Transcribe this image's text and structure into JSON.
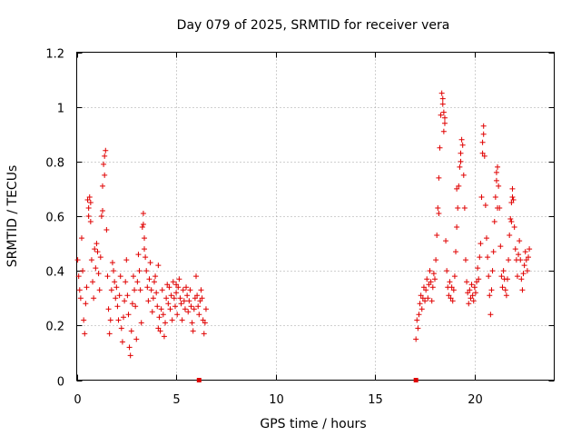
{
  "chart_data": {
    "type": "scatter",
    "title": "Day 079 of 2025, SRMTID for receiver vera",
    "xlabel": "GPS time / hours",
    "ylabel": "SRMTID / TECUs",
    "xlim": [
      0,
      24
    ],
    "ylim": [
      0,
      1.2
    ],
    "x_ticks": [
      0,
      5,
      10,
      15,
      20
    ],
    "x_tick_labels": [
      "0",
      "5",
      "10",
      "15",
      "20"
    ],
    "y_ticks": [
      0,
      0.2,
      0.4,
      0.6,
      0.8,
      1.0,
      1.2
    ],
    "y_tick_labels": [
      "0",
      "0.2",
      "0.4",
      "0.6",
      "0.8",
      "1",
      "1.2"
    ],
    "grid": true,
    "marker": "plus",
    "color": "#e00000",
    "series": [
      {
        "name": "SRMTID",
        "points": [
          [
            0.05,
            0.44
          ],
          [
            0.1,
            0.38
          ],
          [
            0.15,
            0.33
          ],
          [
            0.2,
            0.3
          ],
          [
            0.25,
            0.52
          ],
          [
            0.3,
            0.4
          ],
          [
            0.35,
            0.22
          ],
          [
            0.4,
            0.17
          ],
          [
            0.45,
            0.28
          ],
          [
            0.5,
            0.34
          ],
          [
            0.55,
            0.66
          ],
          [
            0.6,
            0.63
          ],
          [
            0.65,
            0.67
          ],
          [
            0.7,
            0.58
          ],
          [
            0.75,
            0.44
          ],
          [
            0.8,
            0.36
          ],
          [
            0.85,
            0.3
          ],
          [
            0.9,
            0.48
          ],
          [
            0.95,
            0.41
          ],
          [
            1.0,
            0.5
          ],
          [
            1.05,
            0.47
          ],
          [
            1.1,
            0.39
          ],
          [
            1.15,
            0.33
          ],
          [
            1.2,
            0.45
          ],
          [
            1.25,
            0.6
          ],
          [
            1.3,
            0.71
          ],
          [
            1.35,
            0.79
          ],
          [
            1.4,
            0.82
          ],
          [
            1.45,
            0.84
          ],
          [
            1.5,
            0.55
          ],
          [
            1.55,
            0.38
          ],
          [
            1.6,
            0.26
          ],
          [
            1.65,
            0.17
          ],
          [
            1.7,
            0.22
          ],
          [
            1.75,
            0.33
          ],
          [
            1.8,
            0.43
          ],
          [
            1.85,
            0.4
          ],
          [
            1.9,
            0.36
          ],
          [
            1.95,
            0.3
          ],
          [
            2.0,
            0.34
          ],
          [
            2.05,
            0.27
          ],
          [
            2.1,
            0.22
          ],
          [
            2.15,
            0.31
          ],
          [
            2.2,
            0.38
          ],
          [
            2.25,
            0.19
          ],
          [
            2.3,
            0.14
          ],
          [
            2.35,
            0.23
          ],
          [
            2.4,
            0.29
          ],
          [
            2.45,
            0.36
          ],
          [
            2.5,
            0.44
          ],
          [
            2.55,
            0.31
          ],
          [
            2.6,
            0.24
          ],
          [
            2.65,
            0.12
          ],
          [
            2.7,
            0.09
          ],
          [
            2.75,
            0.18
          ],
          [
            2.8,
            0.28
          ],
          [
            2.85,
            0.38
          ],
          [
            2.9,
            0.33
          ],
          [
            2.95,
            0.27
          ],
          [
            3.0,
            0.15
          ],
          [
            3.05,
            0.36
          ],
          [
            3.1,
            0.46
          ],
          [
            3.15,
            0.4
          ],
          [
            3.2,
            0.33
          ],
          [
            3.25,
            0.21
          ],
          [
            3.3,
            0.56
          ],
          [
            3.35,
            0.61
          ],
          [
            3.4,
            0.52
          ],
          [
            3.45,
            0.45
          ],
          [
            3.5,
            0.4
          ],
          [
            3.55,
            0.34
          ],
          [
            3.6,
            0.29
          ],
          [
            3.65,
            0.37
          ],
          [
            3.7,
            0.43
          ],
          [
            3.75,
            0.33
          ],
          [
            3.8,
            0.25
          ],
          [
            3.85,
            0.3
          ],
          [
            3.9,
            0.36
          ],
          [
            3.95,
            0.38
          ],
          [
            4.0,
            0.32
          ],
          [
            4.05,
            0.27
          ],
          [
            4.1,
            0.19
          ],
          [
            4.15,
            0.23
          ],
          [
            4.2,
            0.18
          ],
          [
            4.25,
            0.26
          ],
          [
            4.3,
            0.33
          ],
          [
            4.35,
            0.24
          ],
          [
            4.4,
            0.16
          ],
          [
            4.45,
            0.21
          ],
          [
            4.5,
            0.3
          ],
          [
            4.55,
            0.35
          ],
          [
            4.6,
            0.28
          ],
          [
            4.65,
            0.34
          ],
          [
            4.7,
            0.26
          ],
          [
            4.75,
            0.31
          ],
          [
            4.8,
            0.22
          ],
          [
            4.85,
            0.36
          ],
          [
            4.9,
            0.3
          ],
          [
            4.95,
            0.27
          ],
          [
            5.0,
            0.32
          ],
          [
            5.05,
            0.24
          ],
          [
            5.1,
            0.34
          ],
          [
            5.15,
            0.37
          ],
          [
            5.2,
            0.3
          ],
          [
            5.25,
            0.28
          ],
          [
            5.3,
            0.22
          ],
          [
            5.35,
            0.33
          ],
          [
            5.4,
            0.29
          ],
          [
            5.45,
            0.26
          ],
          [
            5.5,
            0.34
          ],
          [
            5.55,
            0.31
          ],
          [
            5.6,
            0.25
          ],
          [
            5.65,
            0.29
          ],
          [
            5.7,
            0.33
          ],
          [
            5.75,
            0.27
          ],
          [
            5.8,
            0.21
          ],
          [
            5.85,
            0.18
          ],
          [
            5.9,
            0.26
          ],
          [
            5.95,
            0.3
          ],
          [
            6.0,
            0.38
          ],
          [
            6.05,
            0.31
          ],
          [
            6.1,
            0.27
          ],
          [
            6.15,
            0.24
          ],
          [
            6.2,
            0.29
          ],
          [
            6.25,
            0.33
          ],
          [
            6.3,
            0.3
          ],
          [
            6.35,
            0.22
          ],
          [
            6.4,
            0.17
          ],
          [
            6.45,
            0.21
          ],
          [
            6.5,
            0.26
          ],
          [
            17.05,
            0.15
          ],
          [
            17.1,
            0.22
          ],
          [
            17.15,
            0.19
          ],
          [
            17.2,
            0.24
          ],
          [
            17.25,
            0.28
          ],
          [
            17.3,
            0.31
          ],
          [
            17.35,
            0.26
          ],
          [
            17.4,
            0.3
          ],
          [
            17.45,
            0.34
          ],
          [
            17.5,
            0.29
          ],
          [
            17.55,
            0.33
          ],
          [
            17.6,
            0.37
          ],
          [
            17.65,
            0.3
          ],
          [
            17.7,
            0.35
          ],
          [
            17.75,
            0.4
          ],
          [
            17.8,
            0.36
          ],
          [
            17.85,
            0.29
          ],
          [
            17.9,
            0.34
          ],
          [
            17.95,
            0.39
          ],
          [
            18.0,
            0.37
          ],
          [
            18.05,
            0.44
          ],
          [
            18.1,
            0.53
          ],
          [
            18.15,
            0.63
          ],
          [
            18.2,
            0.74
          ],
          [
            18.25,
            0.85
          ],
          [
            18.3,
            0.97
          ],
          [
            18.35,
            1.05
          ],
          [
            18.4,
            1.01
          ],
          [
            18.45,
            0.98
          ],
          [
            18.5,
            0.94
          ],
          [
            18.55,
            0.51
          ],
          [
            18.6,
            0.4
          ],
          [
            18.65,
            0.34
          ],
          [
            18.7,
            0.31
          ],
          [
            18.75,
            0.36
          ],
          [
            18.8,
            0.3
          ],
          [
            18.85,
            0.34
          ],
          [
            18.9,
            0.29
          ],
          [
            18.95,
            0.33
          ],
          [
            19.0,
            0.38
          ],
          [
            19.05,
            0.47
          ],
          [
            19.1,
            0.56
          ],
          [
            19.15,
            0.63
          ],
          [
            19.2,
            0.71
          ],
          [
            19.25,
            0.78
          ],
          [
            19.3,
            0.83
          ],
          [
            19.35,
            0.88
          ],
          [
            19.4,
            0.86
          ],
          [
            19.45,
            0.75
          ],
          [
            19.5,
            0.63
          ],
          [
            19.55,
            0.44
          ],
          [
            19.6,
            0.36
          ],
          [
            19.65,
            0.32
          ],
          [
            19.7,
            0.28
          ],
          [
            19.75,
            0.33
          ],
          [
            19.8,
            0.3
          ],
          [
            19.85,
            0.35
          ],
          [
            19.9,
            0.31
          ],
          [
            19.95,
            0.29
          ],
          [
            20.0,
            0.34
          ],
          [
            20.05,
            0.32
          ],
          [
            20.1,
            0.36
          ],
          [
            20.15,
            0.41
          ],
          [
            20.2,
            0.37
          ],
          [
            20.25,
            0.45
          ],
          [
            20.3,
            0.5
          ],
          [
            20.35,
            0.67
          ],
          [
            20.4,
            0.83
          ],
          [
            20.45,
            0.9
          ],
          [
            20.5,
            0.82
          ],
          [
            20.55,
            0.64
          ],
          [
            20.6,
            0.52
          ],
          [
            20.65,
            0.45
          ],
          [
            20.7,
            0.38
          ],
          [
            20.75,
            0.31
          ],
          [
            20.8,
            0.24
          ],
          [
            20.85,
            0.33
          ],
          [
            20.9,
            0.4
          ],
          [
            20.95,
            0.47
          ],
          [
            21.0,
            0.58
          ],
          [
            21.05,
            0.67
          ],
          [
            21.1,
            0.73
          ],
          [
            21.15,
            0.78
          ],
          [
            21.2,
            0.71
          ],
          [
            21.25,
            0.63
          ],
          [
            21.3,
            0.49
          ],
          [
            21.35,
            0.38
          ],
          [
            21.4,
            0.34
          ],
          [
            21.45,
            0.4
          ],
          [
            21.5,
            0.37
          ],
          [
            21.55,
            0.33
          ],
          [
            21.6,
            0.31
          ],
          [
            21.65,
            0.37
          ],
          [
            21.7,
            0.44
          ],
          [
            21.75,
            0.53
          ],
          [
            21.8,
            0.59
          ],
          [
            21.85,
            0.65
          ],
          [
            21.9,
            0.7
          ],
          [
            21.95,
            0.66
          ],
          [
            22.0,
            0.56
          ],
          [
            22.05,
            0.48
          ],
          [
            22.1,
            0.44
          ],
          [
            22.15,
            0.38
          ],
          [
            22.2,
            0.46
          ],
          [
            22.25,
            0.51
          ],
          [
            22.3,
            0.44
          ],
          [
            22.35,
            0.37
          ],
          [
            22.4,
            0.33
          ],
          [
            22.45,
            0.39
          ],
          [
            22.5,
            0.42
          ],
          [
            22.55,
            0.47
          ],
          [
            22.6,
            0.44
          ],
          [
            22.65,
            0.4
          ],
          [
            22.7,
            0.45
          ],
          [
            22.75,
            0.48
          ],
          [
            0.6,
            0.6
          ],
          [
            0.7,
            0.65
          ],
          [
            1.3,
            0.62
          ],
          [
            1.4,
            0.75
          ],
          [
            3.35,
            0.57
          ],
          [
            3.4,
            0.48
          ],
          [
            4.1,
            0.42
          ],
          [
            5.0,
            0.35
          ],
          [
            18.2,
            0.61
          ],
          [
            18.4,
            1.03
          ],
          [
            18.45,
            0.91
          ],
          [
            18.5,
            0.96
          ],
          [
            19.1,
            0.7
          ],
          [
            19.3,
            0.8
          ],
          [
            20.4,
            0.87
          ],
          [
            20.45,
            0.93
          ],
          [
            21.1,
            0.76
          ],
          [
            21.15,
            0.63
          ],
          [
            21.85,
            0.58
          ],
          [
            21.9,
            0.67
          ]
        ]
      }
    ],
    "zero_markers": [
      6.15,
      17.05
    ]
  }
}
